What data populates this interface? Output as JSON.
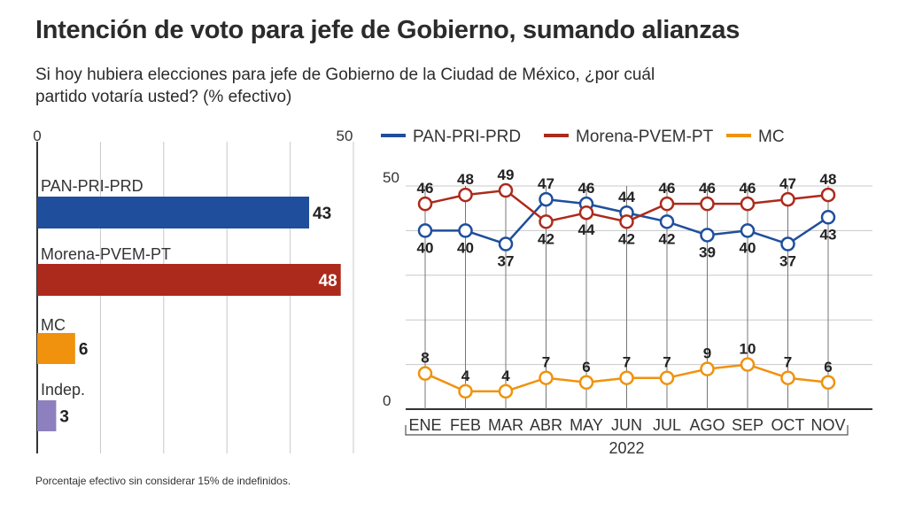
{
  "title": "Intención de voto para jefe de Gobierno, sumando alianzas",
  "subtitle": "Si hoy hubiera elecciones para jefe de Gobierno de la Ciudad de México, ¿por cuál partido votaría usted? (% efectivo)",
  "note": "Porcentaje efectivo sin considerar 15% de indefinidos.",
  "colors": {
    "pan": "#1f4e9c",
    "morena": "#ac2a1c",
    "mc": "#f0920d",
    "indep": "#8d80bf",
    "grid": "#c8c8c8"
  },
  "chart_data": [
    {
      "type": "bar",
      "orientation": "horizontal",
      "categories": [
        "PAN-PRI-PRD",
        "Morena-PVEM-PT",
        "MC",
        "Indep."
      ],
      "values": [
        43,
        48,
        6,
        3
      ],
      "xlim": [
        0,
        50
      ],
      "tick_labels": [
        "0",
        "50"
      ],
      "grid": true
    },
    {
      "type": "line",
      "x": [
        "ENE",
        "FEB",
        "MAR",
        "ABR",
        "MAY",
        "JUN",
        "JUL",
        "AGO",
        "SEP",
        "OCT",
        "NOV"
      ],
      "xlabel": "2022",
      "ylim": [
        0,
        50
      ],
      "tick_labels": [
        "0",
        "50"
      ],
      "grid": true,
      "legend_position": "top",
      "series": [
        {
          "name": "PAN-PRI-PRD",
          "values": [
            40,
            40,
            37,
            47,
            46,
            44,
            42,
            39,
            40,
            37,
            43
          ]
        },
        {
          "name": "Morena-PVEM-PT",
          "values": [
            46,
            48,
            49,
            42,
            44,
            42,
            46,
            46,
            46,
            47,
            48
          ]
        },
        {
          "name": "MC",
          "values": [
            8,
            4,
            4,
            7,
            6,
            7,
            7,
            9,
            10,
            7,
            6
          ]
        }
      ]
    }
  ]
}
